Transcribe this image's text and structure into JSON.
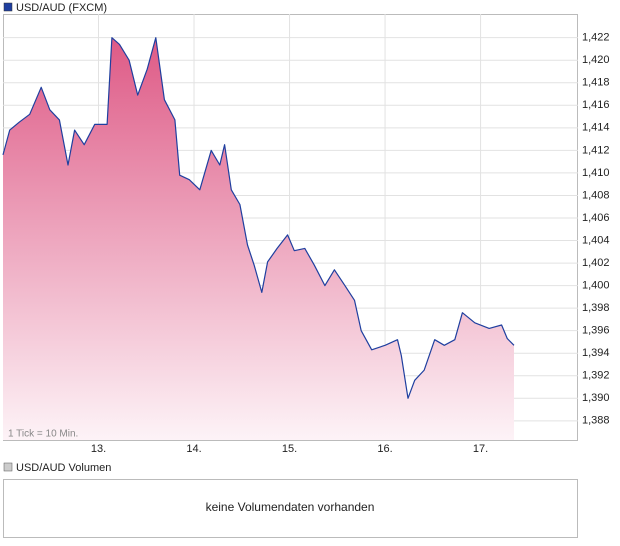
{
  "chart_data": {
    "type": "line",
    "title": "USD/AUD (FXCM)",
    "annotation": "1 Tick = 10 Min.",
    "x": [
      12.0,
      12.07,
      12.17,
      12.28,
      12.4,
      12.49,
      12.59,
      12.68,
      12.75,
      12.85,
      12.96,
      13.09,
      13.14,
      13.22,
      13.32,
      13.41,
      13.51,
      13.6,
      13.69,
      13.8,
      13.85,
      13.95,
      14.06,
      14.18,
      14.27,
      14.32,
      14.39,
      14.48,
      14.56,
      14.63,
      14.71,
      14.77,
      14.87,
      14.98,
      15.05,
      15.16,
      15.26,
      15.37,
      15.47,
      15.58,
      15.68,
      15.75,
      15.86,
      16.0,
      16.13,
      16.17,
      16.24,
      16.31,
      16.41,
      16.52,
      16.62,
      16.73,
      16.81,
      16.94,
      17.09,
      17.22,
      17.28,
      17.35
    ],
    "series": [
      {
        "name": "USD/AUD",
        "color": "#1f3f9f",
        "values": [
          1.4116,
          1.4138,
          1.4145,
          1.4152,
          1.4176,
          1.4156,
          1.4147,
          1.4107,
          1.4138,
          1.4125,
          1.4143,
          1.4143,
          1.422,
          1.4214,
          1.42,
          1.4169,
          1.4192,
          1.422,
          1.4165,
          1.4147,
          1.4098,
          1.4094,
          1.4085,
          1.412,
          1.4107,
          1.4125,
          1.4085,
          1.4072,
          1.4036,
          1.4018,
          1.3994,
          1.4021,
          1.4033,
          1.4045,
          1.4031,
          1.4033,
          1.4018,
          1.4,
          1.4014,
          1.4,
          1.3987,
          1.396,
          1.3943,
          1.3947,
          1.3952,
          1.3938,
          1.39,
          1.3916,
          1.3925,
          1.3952,
          1.3947,
          1.3952,
          1.3976,
          1.3967,
          1.3962,
          1.3965,
          1.3953,
          1.3947
        ]
      }
    ],
    "xlim": [
      12.0,
      18.02
    ],
    "xticks": [
      {
        "value": 13,
        "label": "13."
      },
      {
        "value": 14,
        "label": "14."
      },
      {
        "value": 15,
        "label": "15."
      },
      {
        "value": 16,
        "label": "16."
      },
      {
        "value": 17,
        "label": "17."
      }
    ],
    "ylim": [
      1.3863,
      1.4241
    ],
    "yticks": [
      {
        "value": 1.388,
        "label": "1,388"
      },
      {
        "value": 1.39,
        "label": "1,390"
      },
      {
        "value": 1.392,
        "label": "1,392"
      },
      {
        "value": 1.394,
        "label": "1,394"
      },
      {
        "value": 1.396,
        "label": "1,396"
      },
      {
        "value": 1.398,
        "label": "1,398"
      },
      {
        "value": 1.4,
        "label": "1,400"
      },
      {
        "value": 1.402,
        "label": "1,402"
      },
      {
        "value": 1.404,
        "label": "1,404"
      },
      {
        "value": 1.406,
        "label": "1,406"
      },
      {
        "value": 1.408,
        "label": "1,408"
      },
      {
        "value": 1.41,
        "label": "1,410"
      },
      {
        "value": 1.412,
        "label": "1,412"
      },
      {
        "value": 1.414,
        "label": "1,414"
      },
      {
        "value": 1.416,
        "label": "1,416"
      },
      {
        "value": 1.418,
        "label": "1,418"
      },
      {
        "value": 1.42,
        "label": "1,420"
      },
      {
        "value": 1.422,
        "label": "1,422"
      }
    ],
    "grid": true,
    "area_fill": true
  },
  "volume_panel": {
    "title": "USD/AUD Volumen",
    "message": "keine Volumendaten vorhanden"
  }
}
